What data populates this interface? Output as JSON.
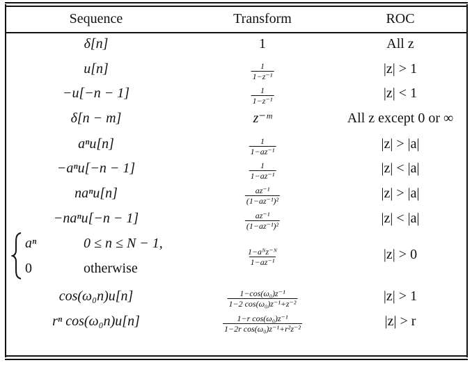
{
  "headers": {
    "sequence": "Sequence",
    "transform": "Transform",
    "roc": "ROC"
  },
  "rows": [
    {
      "sequence": "δ[n]",
      "transform": "1",
      "roc": "All z"
    },
    {
      "sequence": "u[n]",
      "transform": {
        "num": "1",
        "den": "1−z⁻¹"
      },
      "roc": "|z| > 1"
    },
    {
      "sequence": "−u[−n − 1]",
      "transform": {
        "num": "1",
        "den": "1−z⁻¹"
      },
      "roc": "|z| < 1"
    },
    {
      "sequence": "δ[n − m]",
      "transform": "z⁻ᵐ",
      "roc": "All z except 0 or ∞"
    },
    {
      "sequence": "aⁿu[n]",
      "transform": {
        "num": "1",
        "den": "1−az⁻¹"
      },
      "roc": "|z| > |a|"
    },
    {
      "sequence": "−aⁿu[−n − 1]",
      "transform": {
        "num": "1",
        "den": "1−az⁻¹"
      },
      "roc": "|z| < |a|"
    },
    {
      "sequence": "naⁿu[n]",
      "transform": {
        "num": "az⁻¹",
        "den": "(1−az⁻¹)²"
      },
      "roc": "|z| > |a|"
    },
    {
      "sequence": "−naⁿu[−n − 1]",
      "transform": {
        "num": "az⁻¹",
        "den": "(1−az⁻¹)²"
      },
      "roc": "|z| < |a|"
    },
    {
      "sequence": {
        "case1_value": "aⁿ",
        "case1_condition": "0 ≤ n ≤ N − 1,",
        "case2_value": "0",
        "case2_condition": "otherwise"
      },
      "transform": {
        "num": "1−aᴺz⁻ᴺ",
        "den": "1−az⁻¹"
      },
      "roc": "|z| > 0"
    },
    {
      "sequence": "cos(ω₀n)u[n]",
      "transform": {
        "num": "1−cos(ω₀)z⁻¹",
        "den": "1−2 cos(ω₀)z⁻¹+z⁻²"
      },
      "roc": "|z| > 1"
    },
    {
      "sequence": "rⁿ cos(ω₀n)u[n]",
      "transform": {
        "num": "1−r cos(ω₀)z⁻¹",
        "den": "1−2r cos(ω₀)z⁻¹+r²z⁻²"
      },
      "roc": "|z| > r"
    }
  ]
}
